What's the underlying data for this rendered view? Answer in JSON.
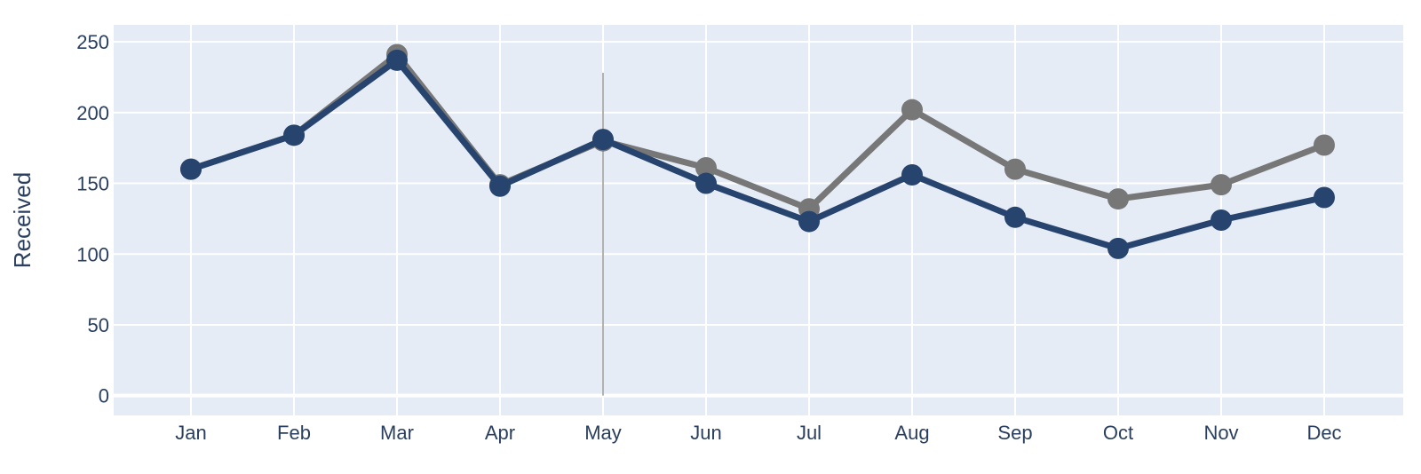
{
  "chart_data": {
    "type": "line",
    "title": "",
    "xlabel": "",
    "ylabel": "Received",
    "categories": [
      "Jan",
      "Feb",
      "Mar",
      "Apr",
      "May",
      "Jun",
      "Jul",
      "Aug",
      "Sep",
      "Oct",
      "Nov",
      "Dec"
    ],
    "ylim": [
      -14,
      262
    ],
    "yticks": [
      0,
      50,
      100,
      150,
      200,
      250
    ],
    "grid": true,
    "legend": "none",
    "hover_marker_category": "May",
    "series": [
      {
        "color": "#777777",
        "values": [
          160,
          184,
          241,
          149,
          180,
          161,
          132,
          202,
          160,
          139,
          149,
          177
        ]
      },
      {
        "color": "#27446e",
        "values": [
          160,
          184,
          237,
          148,
          181,
          150,
          123,
          156,
          126,
          104,
          124,
          140
        ]
      }
    ],
    "colors": {
      "plot_background": "#e5ecf6",
      "grid": "#ffffff",
      "text": "#2a3f5f",
      "hover_line": "#999999"
    }
  }
}
